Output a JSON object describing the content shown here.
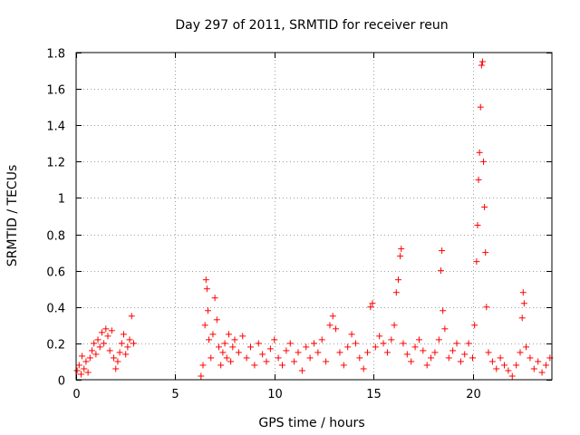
{
  "chart_data": {
    "type": "scatter",
    "title": "Day 297 of 2011, SRMTID for receiver reun",
    "xlabel": "GPS time / hours",
    "ylabel": "SRMTID / TECUs",
    "xlim": [
      0,
      24
    ],
    "ylim": [
      0,
      1.8
    ],
    "xticks": [
      0,
      5,
      10,
      15,
      20
    ],
    "xtick_labels": [
      "0",
      "5",
      "10",
      "15",
      "20"
    ],
    "yticks": [
      0,
      0.2,
      0.4,
      0.6,
      0.8,
      1.0,
      1.2,
      1.4,
      1.6,
      1.8
    ],
    "ytick_labels": [
      "0",
      "0.2",
      "0.4",
      "0.6",
      "0.8",
      "1",
      "1.2",
      "1.4",
      "1.6",
      "1.8"
    ],
    "grid": true,
    "marker": "+",
    "color": "#ff0000",
    "series": [
      {
        "name": "SRMTID",
        "points": [
          [
            0.05,
            0.05
          ],
          [
            0.15,
            0.08
          ],
          [
            0.25,
            0.03
          ],
          [
            0.3,
            0.13
          ],
          [
            0.4,
            0.06
          ],
          [
            0.5,
            0.1
          ],
          [
            0.6,
            0.04
          ],
          [
            0.7,
            0.12
          ],
          [
            0.8,
            0.16
          ],
          [
            0.9,
            0.2
          ],
          [
            1.0,
            0.14
          ],
          [
            1.1,
            0.22
          ],
          [
            1.2,
            0.18
          ],
          [
            1.3,
            0.26
          ],
          [
            1.4,
            0.2
          ],
          [
            1.5,
            0.28
          ],
          [
            1.6,
            0.24
          ],
          [
            1.7,
            0.16
          ],
          [
            1.8,
            0.27
          ],
          [
            1.9,
            0.12
          ],
          [
            2.0,
            0.06
          ],
          [
            2.1,
            0.1
          ],
          [
            2.2,
            0.15
          ],
          [
            2.3,
            0.2
          ],
          [
            2.4,
            0.25
          ],
          [
            2.5,
            0.14
          ],
          [
            2.6,
            0.18
          ],
          [
            2.7,
            0.22
          ],
          [
            2.8,
            0.35
          ],
          [
            2.9,
            0.2
          ],
          [
            6.3,
            0.02
          ],
          [
            6.4,
            0.08
          ],
          [
            6.5,
            0.3
          ],
          [
            6.55,
            0.55
          ],
          [
            6.6,
            0.5
          ],
          [
            6.65,
            0.38
          ],
          [
            6.7,
            0.22
          ],
          [
            6.8,
            0.12
          ],
          [
            6.9,
            0.25
          ],
          [
            7.0,
            0.45
          ],
          [
            7.1,
            0.33
          ],
          [
            7.2,
            0.18
          ],
          [
            7.3,
            0.08
          ],
          [
            7.4,
            0.15
          ],
          [
            7.5,
            0.2
          ],
          [
            7.6,
            0.12
          ],
          [
            7.7,
            0.25
          ],
          [
            7.8,
            0.1
          ],
          [
            7.9,
            0.18
          ],
          [
            8.0,
            0.22
          ],
          [
            8.2,
            0.15
          ],
          [
            8.4,
            0.24
          ],
          [
            8.6,
            0.12
          ],
          [
            8.8,
            0.18
          ],
          [
            9.0,
            0.08
          ],
          [
            9.2,
            0.2
          ],
          [
            9.4,
            0.14
          ],
          [
            9.6,
            0.1
          ],
          [
            9.8,
            0.17
          ],
          [
            10.0,
            0.22
          ],
          [
            10.2,
            0.12
          ],
          [
            10.4,
            0.08
          ],
          [
            10.6,
            0.16
          ],
          [
            10.8,
            0.2
          ],
          [
            11.0,
            0.1
          ],
          [
            11.2,
            0.15
          ],
          [
            11.4,
            0.05
          ],
          [
            11.6,
            0.18
          ],
          [
            11.8,
            0.12
          ],
          [
            12.0,
            0.2
          ],
          [
            12.2,
            0.15
          ],
          [
            12.4,
            0.22
          ],
          [
            12.6,
            0.1
          ],
          [
            12.8,
            0.3
          ],
          [
            12.95,
            0.35
          ],
          [
            13.1,
            0.28
          ],
          [
            13.3,
            0.15
          ],
          [
            13.5,
            0.08
          ],
          [
            13.7,
            0.18
          ],
          [
            13.9,
            0.25
          ],
          [
            14.1,
            0.2
          ],
          [
            14.3,
            0.12
          ],
          [
            14.5,
            0.06
          ],
          [
            14.7,
            0.15
          ],
          [
            14.85,
            0.4
          ],
          [
            14.95,
            0.42
          ],
          [
            15.1,
            0.18
          ],
          [
            15.3,
            0.24
          ],
          [
            15.5,
            0.2
          ],
          [
            15.7,
            0.15
          ],
          [
            15.9,
            0.22
          ],
          [
            16.05,
            0.3
          ],
          [
            16.15,
            0.48
          ],
          [
            16.25,
            0.55
          ],
          [
            16.35,
            0.68
          ],
          [
            16.4,
            0.72
          ],
          [
            16.5,
            0.2
          ],
          [
            16.7,
            0.14
          ],
          [
            16.9,
            0.1
          ],
          [
            17.1,
            0.18
          ],
          [
            17.3,
            0.22
          ],
          [
            17.5,
            0.16
          ],
          [
            17.7,
            0.08
          ],
          [
            17.9,
            0.12
          ],
          [
            18.1,
            0.15
          ],
          [
            18.3,
            0.22
          ],
          [
            18.4,
            0.6
          ],
          [
            18.45,
            0.71
          ],
          [
            18.5,
            0.38
          ],
          [
            18.6,
            0.28
          ],
          [
            18.8,
            0.12
          ],
          [
            19.0,
            0.16
          ],
          [
            19.2,
            0.2
          ],
          [
            19.4,
            0.1
          ],
          [
            19.6,
            0.14
          ],
          [
            19.8,
            0.2
          ],
          [
            20.0,
            0.12
          ],
          [
            20.1,
            0.3
          ],
          [
            20.2,
            0.65
          ],
          [
            20.25,
            0.85
          ],
          [
            20.3,
            1.1
          ],
          [
            20.35,
            1.25
          ],
          [
            20.4,
            1.5
          ],
          [
            20.45,
            1.73
          ],
          [
            20.5,
            1.75
          ],
          [
            20.55,
            1.2
          ],
          [
            20.6,
            0.95
          ],
          [
            20.65,
            0.7
          ],
          [
            20.7,
            0.4
          ],
          [
            20.8,
            0.15
          ],
          [
            21.0,
            0.1
          ],
          [
            21.2,
            0.06
          ],
          [
            21.4,
            0.12
          ],
          [
            21.6,
            0.08
          ],
          [
            21.8,
            0.05
          ],
          [
            22.0,
            0.02
          ],
          [
            22.2,
            0.08
          ],
          [
            22.4,
            0.15
          ],
          [
            22.5,
            0.34
          ],
          [
            22.55,
            0.48
          ],
          [
            22.6,
            0.42
          ],
          [
            22.7,
            0.18
          ],
          [
            22.9,
            0.12
          ],
          [
            23.1,
            0.06
          ],
          [
            23.3,
            0.1
          ],
          [
            23.5,
            0.04
          ],
          [
            23.7,
            0.08
          ],
          [
            23.9,
            0.12
          ]
        ]
      }
    ]
  }
}
